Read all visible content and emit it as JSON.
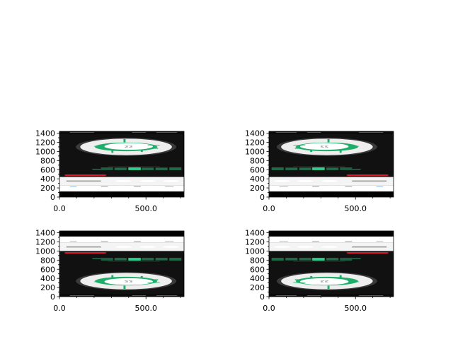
{
  "chart_data": [
    {
      "type": "image",
      "panel": "top-left",
      "orientation": "normal",
      "xlim": [
        0,
        720
      ],
      "ylim": [
        0,
        1440
      ],
      "xticks": [
        0,
        500
      ],
      "xtick_labels": [
        "0.0",
        "500.0"
      ],
      "yticks": [
        0,
        200,
        400,
        600,
        800,
        1000,
        1200,
        1400
      ],
      "ytick_labels": [
        "0",
        "200",
        "400",
        "600",
        "800",
        "1000",
        "1200",
        "1400"
      ],
      "image_text": "22"
    },
    {
      "type": "image",
      "panel": "top-right",
      "orientation": "flipped-horizontal",
      "xlim": [
        0,
        720
      ],
      "ylim": [
        0,
        1440
      ],
      "xticks": [
        0,
        500
      ],
      "xtick_labels": [
        "0.0",
        "500.0"
      ],
      "yticks": [
        0,
        200,
        400,
        600,
        800,
        1000,
        1200,
        1400
      ],
      "ytick_labels": [
        "0",
        "200",
        "400",
        "600",
        "800",
        "1000",
        "1200",
        "1400"
      ],
      "image_text": "22"
    },
    {
      "type": "image",
      "panel": "bottom-left",
      "orientation": "flipped-vertical",
      "xlim": [
        0,
        720
      ],
      "ylim": [
        0,
        1440
      ],
      "xticks": [
        0,
        500
      ],
      "xtick_labels": [
        "0.0",
        "500.0"
      ],
      "yticks": [
        0,
        200,
        400,
        600,
        800,
        1000,
        1200,
        1400
      ],
      "ytick_labels": [
        "0",
        "200",
        "400",
        "600",
        "800",
        "1000",
        "1200",
        "1400"
      ],
      "image_text": "22"
    },
    {
      "type": "image",
      "panel": "bottom-right",
      "orientation": "flipped-both",
      "xlim": [
        0,
        720
      ],
      "ylim": [
        0,
        1440
      ],
      "xticks": [
        0,
        500
      ],
      "xtick_labels": [
        "0.0",
        "500.0"
      ],
      "yticks": [
        0,
        200,
        400,
        600,
        800,
        1000,
        1200,
        1400
      ],
      "ytick_labels": [
        "0",
        "200",
        "400",
        "600",
        "800",
        "1000",
        "1200",
        "1400"
      ],
      "image_text": "22"
    }
  ],
  "colors": {
    "accent_green": "#1fae6a",
    "red_bar": "#e0142a",
    "background_dark": "#111111"
  }
}
